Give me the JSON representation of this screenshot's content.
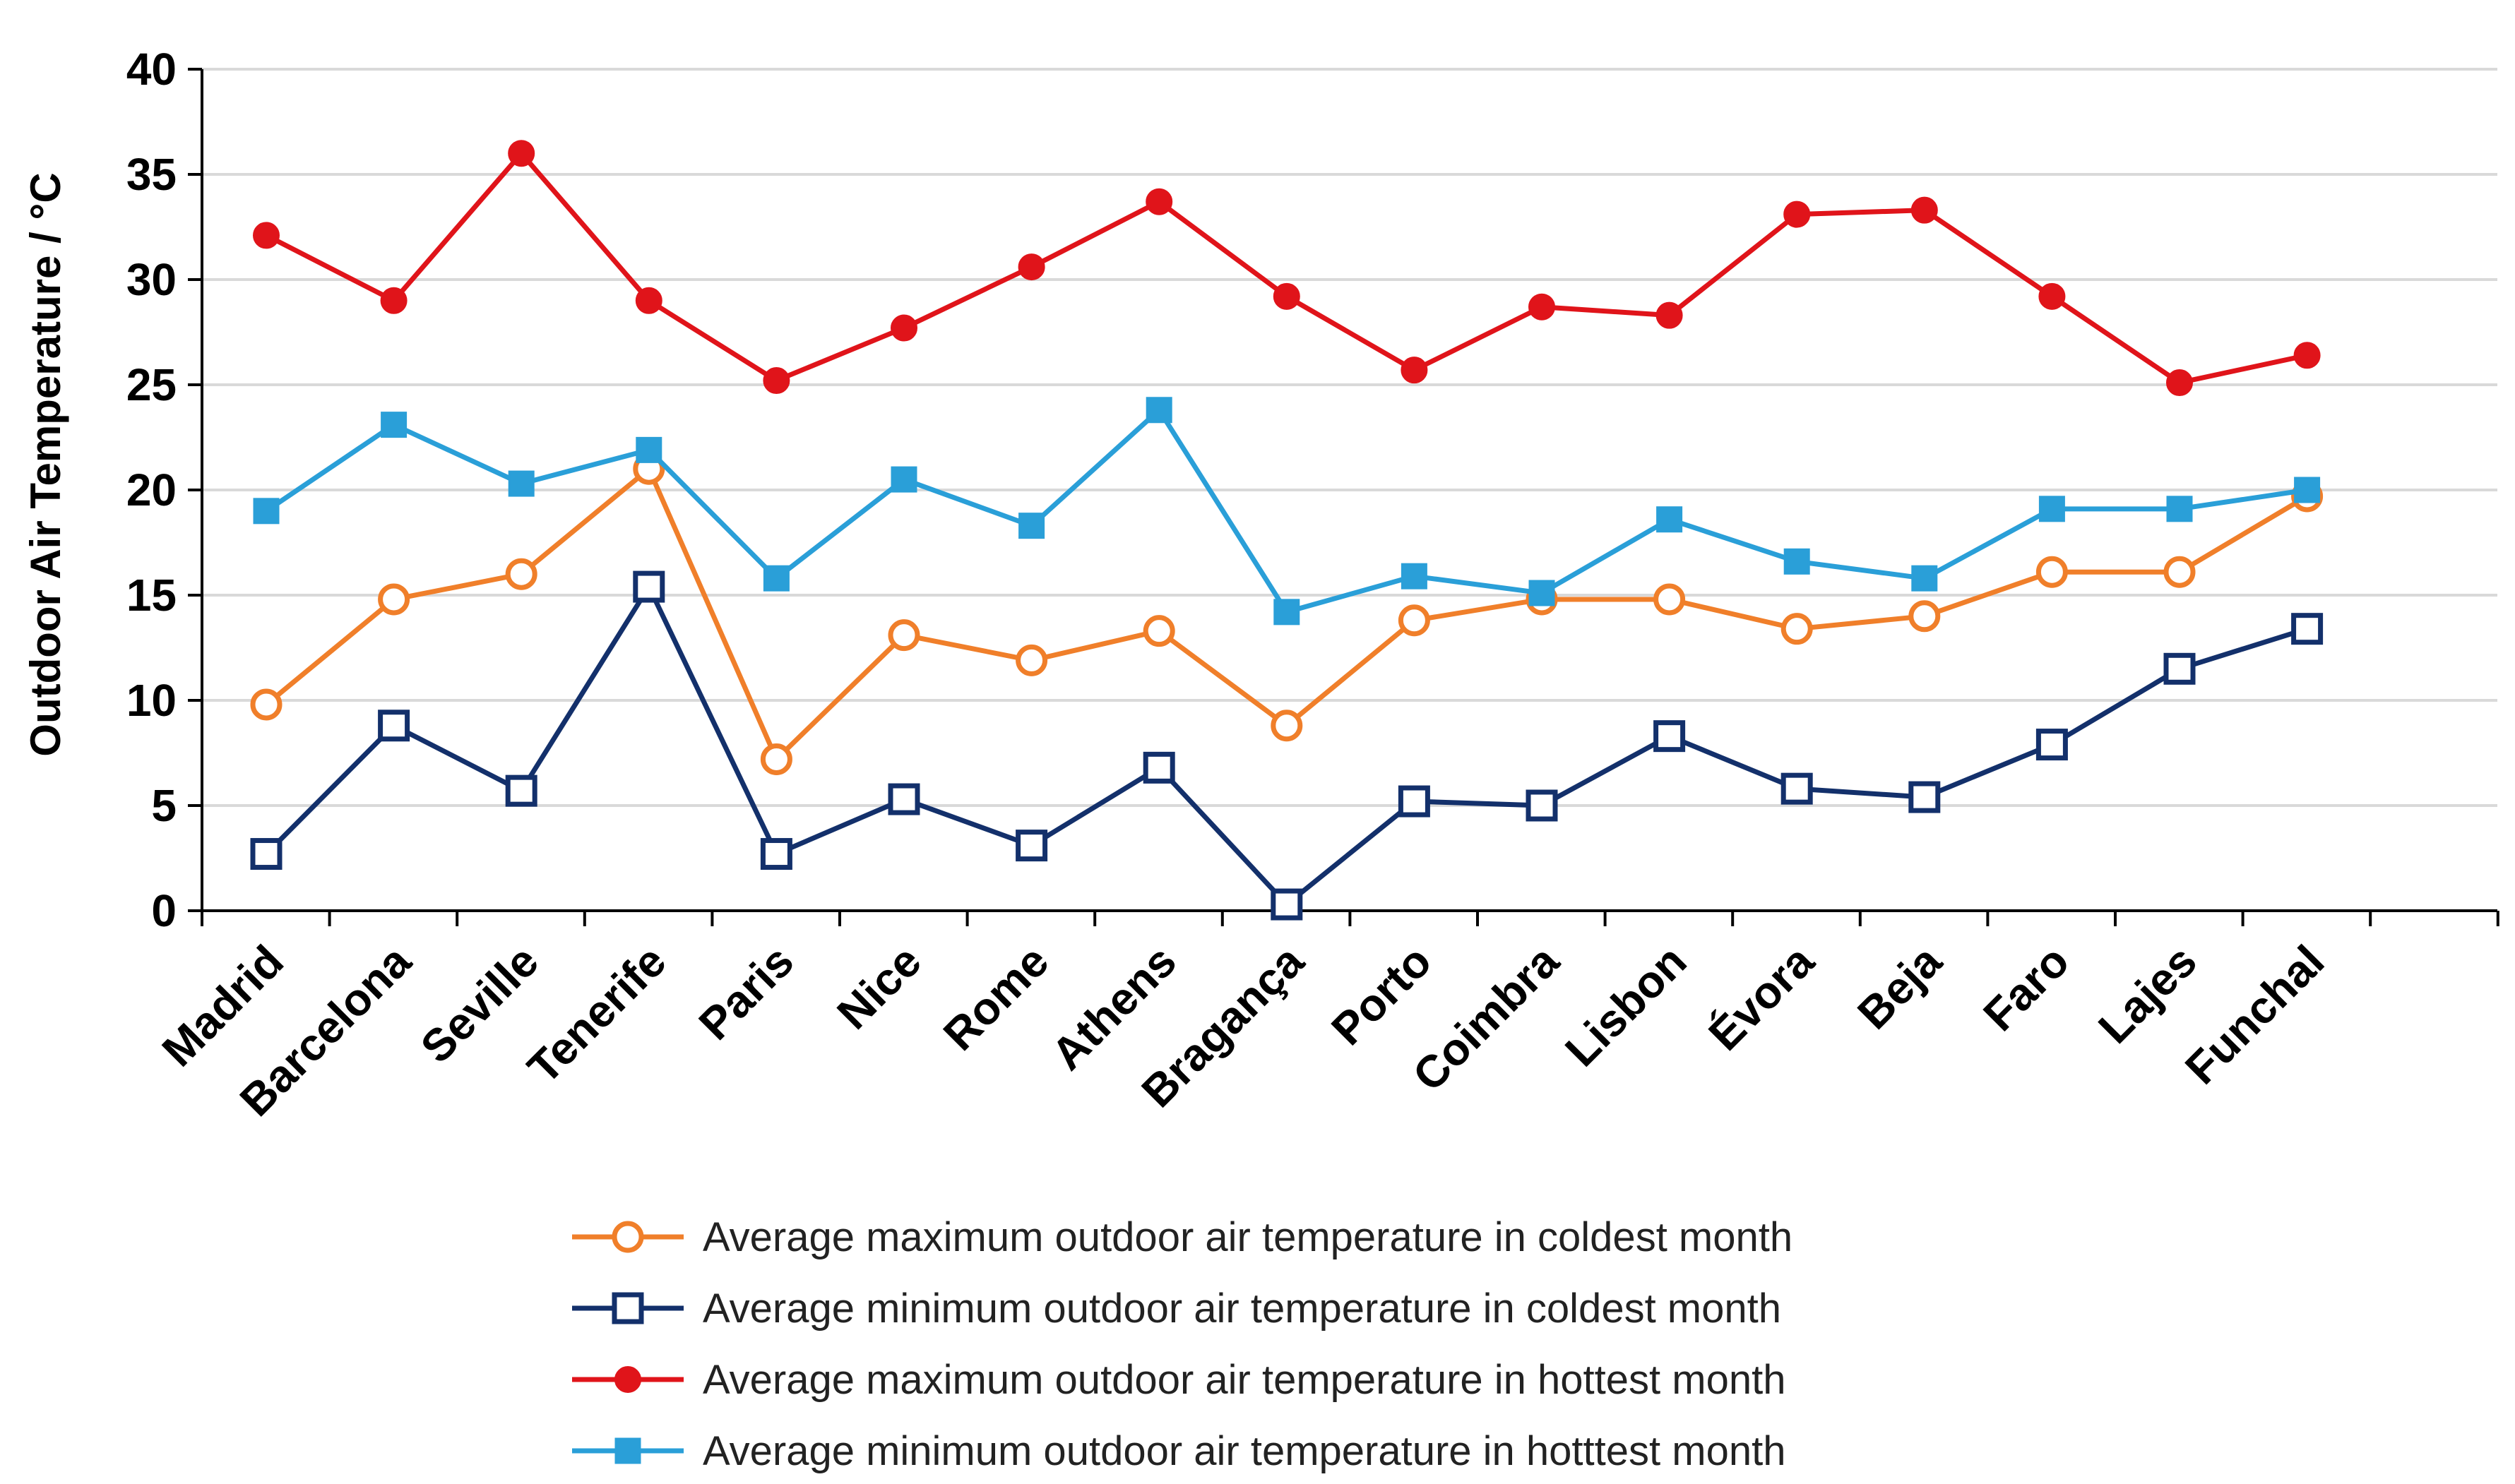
{
  "chart_data": {
    "type": "line",
    "title": "",
    "xlabel": "",
    "ylabel": "Outdoor Air Temperature / °C",
    "ylim": [
      0,
      40
    ],
    "yticks": [
      0,
      5,
      10,
      15,
      20,
      25,
      30,
      35,
      40
    ],
    "grid": true,
    "legend_position": "bottom",
    "categories": [
      "Madrid",
      "Barcelona",
      "Seville",
      "Tenerife",
      "Paris",
      "Nice",
      "Rome",
      "Athens",
      "Bragança",
      "Porto",
      "Coimbra",
      "Lisbon",
      "Évora",
      "Beja",
      "Faro",
      "Lajes",
      "Funchal"
    ],
    "series": [
      {
        "name": "Average maximum outdoor air temperature in coldest month",
        "color": "#f07f2a",
        "marker": "open-circle",
        "values": [
          9.8,
          14.8,
          16.0,
          21.0,
          7.2,
          13.1,
          11.9,
          13.3,
          8.8,
          13.8,
          14.8,
          14.8,
          13.4,
          14.0,
          16.1,
          16.1,
          19.7
        ]
      },
      {
        "name": "Average minimum outdoor air temperature in coldest  month",
        "color": "#13306b",
        "marker": "open-square",
        "values": [
          2.7,
          8.8,
          5.7,
          15.4,
          2.7,
          5.3,
          3.1,
          6.8,
          0.3,
          5.2,
          5.0,
          8.3,
          5.8,
          5.4,
          7.9,
          11.5,
          13.4
        ]
      },
      {
        "name": "Average maximum outdoor air temperature in hottest month",
        "color": "#e0141a",
        "marker": "filled-circle",
        "values": [
          32.1,
          29.0,
          36.0,
          29.0,
          25.2,
          27.7,
          30.6,
          33.7,
          29.2,
          25.7,
          28.7,
          28.3,
          33.1,
          33.3,
          29.2,
          25.1,
          26.4
        ]
      },
      {
        "name": "Average minimum outdoor air temperature in hotttest month",
        "color": "#2a9fd8",
        "marker": "filled-square",
        "values": [
          19.0,
          23.1,
          20.3,
          21.9,
          15.8,
          20.5,
          18.3,
          23.8,
          14.2,
          15.9,
          15.1,
          18.6,
          16.6,
          15.8,
          19.1,
          19.1,
          20.0
        ]
      }
    ]
  }
}
